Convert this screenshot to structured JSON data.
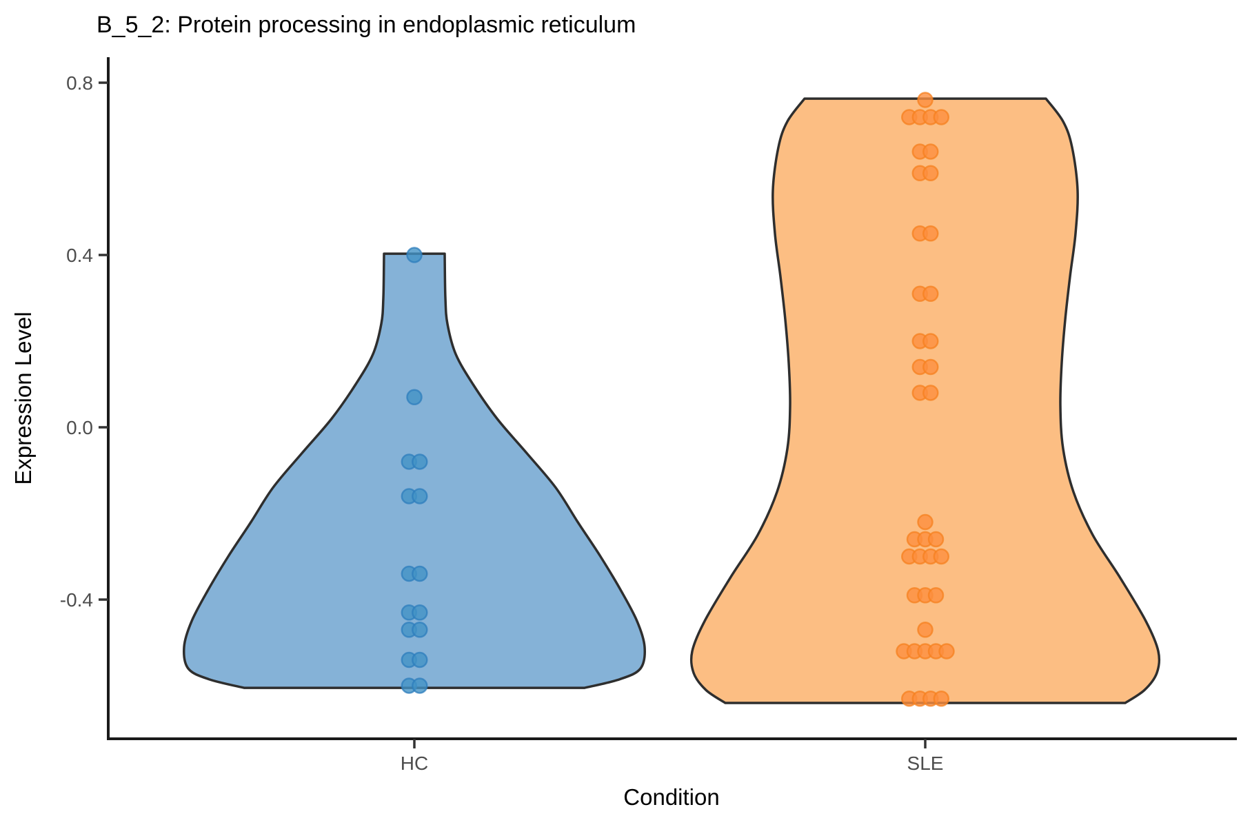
{
  "title": "B_5_2: Protein processing in endoplasmic reticulum",
  "axes": {
    "x": {
      "label": "Condition",
      "categories": [
        "HC",
        "SLE"
      ]
    },
    "y": {
      "label": "Expression Level",
      "tick_labels": [
        "0.8",
        "0.4",
        "0.0",
        "-0.4"
      ],
      "tick_values": [
        0.8,
        0.4,
        0.0,
        -0.4
      ]
    }
  },
  "chart_data": {
    "type": "violin",
    "title": "B_5_2: Protein processing in endoplasmic reticulum",
    "xlabel": "Condition",
    "ylabel": "Expression Level",
    "categories": [
      "HC",
      "SLE"
    ],
    "ylim": [
      -0.72,
      0.86
    ],
    "grid": false,
    "legend": false,
    "series": [
      {
        "name": "HC",
        "fill_color": "#85B2D7",
        "point_fill": "#4292C6",
        "point_stroke": "#2E7EBC",
        "value_range": [
          -0.605,
          0.403
        ],
        "point_rows": [
          {
            "value": 0.4,
            "n": 1
          },
          {
            "value": 0.07,
            "n": 1
          },
          {
            "value": -0.08,
            "n": 2
          },
          {
            "value": -0.16,
            "n": 2
          },
          {
            "value": -0.34,
            "n": 2
          },
          {
            "value": -0.43,
            "n": 2
          },
          {
            "value": -0.47,
            "n": 2
          },
          {
            "value": -0.54,
            "n": 2
          },
          {
            "value": -0.6,
            "n": 2
          }
        ],
        "density_profile": [
          [
            0.403,
            44
          ],
          [
            0.3,
            45
          ],
          [
            0.24,
            48
          ],
          [
            0.17,
            60
          ],
          [
            0.1,
            85
          ],
          [
            0.02,
            120
          ],
          [
            -0.06,
            163
          ],
          [
            -0.14,
            205
          ],
          [
            -0.22,
            237
          ],
          [
            -0.3,
            270
          ],
          [
            -0.38,
            300
          ],
          [
            -0.45,
            323
          ],
          [
            -0.51,
            334
          ],
          [
            -0.56,
            328
          ],
          [
            -0.585,
            298
          ],
          [
            -0.605,
            247
          ]
        ]
      },
      {
        "name": "SLE",
        "fill_color": "#FCBE83",
        "point_fill": "#FD8E3E",
        "point_stroke": "#F5801F",
        "value_range": [
          -0.64,
          0.763
        ],
        "point_rows": [
          {
            "value": 0.76,
            "n": 1
          },
          {
            "value": 0.72,
            "n": 4
          },
          {
            "value": 0.64,
            "n": 2
          },
          {
            "value": 0.59,
            "n": 2
          },
          {
            "value": 0.45,
            "n": 2
          },
          {
            "value": 0.31,
            "n": 2
          },
          {
            "value": 0.2,
            "n": 2
          },
          {
            "value": 0.14,
            "n": 2
          },
          {
            "value": 0.08,
            "n": 2
          },
          {
            "value": -0.22,
            "n": 1
          },
          {
            "value": -0.26,
            "n": 3
          },
          {
            "value": -0.3,
            "n": 4
          },
          {
            "value": -0.39,
            "n": 3
          },
          {
            "value": -0.47,
            "n": 1
          },
          {
            "value": -0.52,
            "n": 5
          },
          {
            "value": -0.63,
            "n": 4
          }
        ],
        "density_profile": [
          [
            0.763,
            175
          ],
          [
            0.71,
            200
          ],
          [
            0.65,
            213
          ],
          [
            0.55,
            221
          ],
          [
            0.45,
            218
          ],
          [
            0.35,
            210
          ],
          [
            0.25,
            203
          ],
          [
            0.15,
            198
          ],
          [
            0.05,
            196
          ],
          [
            -0.05,
            200
          ],
          [
            -0.15,
            215
          ],
          [
            -0.25,
            243
          ],
          [
            -0.35,
            283
          ],
          [
            -0.45,
            320
          ],
          [
            -0.52,
            338
          ],
          [
            -0.57,
            336
          ],
          [
            -0.61,
            318
          ],
          [
            -0.64,
            290
          ]
        ]
      }
    ]
  },
  "colors": {
    "background": "#FFFFFF",
    "violin_outline": "#2E2E2E",
    "axis_line": "#1A1A1A",
    "tick_text": "#4D4D4D",
    "hc_fill": "#85B2D7",
    "hc_point": "#4292C6",
    "sle_fill": "#FCBE83",
    "sle_point": "#FD8E3E"
  }
}
